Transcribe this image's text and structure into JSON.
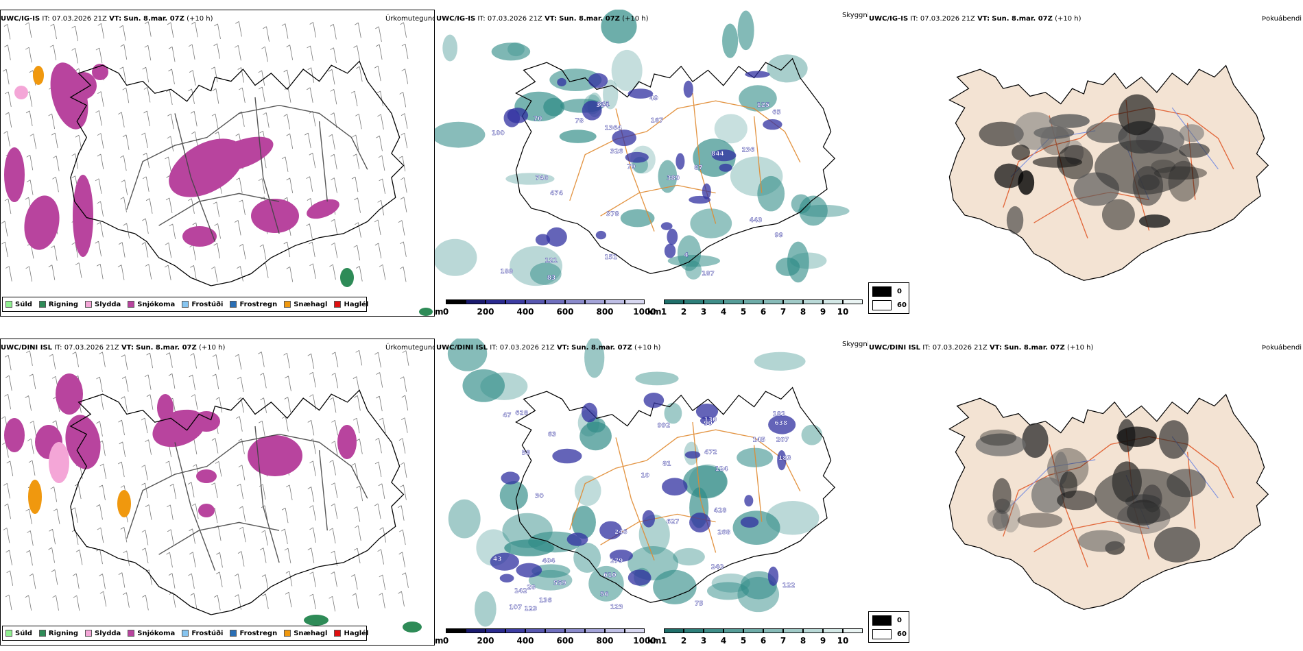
{
  "panels": {
    "top_left": {
      "model": "UWC/IG-IS",
      "it": "IT: 07.03.2026 21Z",
      "vt_label": "VT:",
      "vt_value": "Sun. 8.mar. 07Z",
      "lead": "(+10 h)",
      "field": "Úrkomutegund"
    },
    "top_mid": {
      "model": "UWC/IG-IS",
      "it": "IT: 07.03.2026 21Z",
      "vt_label": "VT:",
      "vt_value": "Sun. 8.mar. 07Z",
      "lead": "(+10 h)",
      "field": "Skyggni"
    },
    "top_right": {
      "model": "UWC/IG-IS",
      "it": "IT: 07.03.2026 21Z",
      "vt_label": "VT:",
      "vt_value": "Sun. 8.mar. 07Z",
      "lead": "(+10 h)",
      "field": "Þokuábendi"
    },
    "bot_left": {
      "model": "UWC/DINI ISL",
      "it": "IT: 07.03.2026 21Z",
      "vt_label": "VT:",
      "vt_value": "Sun. 8.mar. 07Z",
      "lead": "(+10 h)",
      "field": "Úrkomutegund"
    },
    "bot_mid": {
      "model": "UWC/DINI ISL",
      "it": "IT: 07.03.2026 21Z",
      "vt_label": "VT:",
      "vt_value": "Sun. 8.mar. 07Z",
      "lead": "(+10 h)",
      "field": "Skyggni"
    },
    "bot_right": {
      "model": "UWC/DINI ISL",
      "it": "IT: 07.03.2026 21Z",
      "vt_label": "VT:",
      "vt_value": "Sun. 8.mar. 07Z",
      "lead": "(+10 h)",
      "field": "Þokuábendi"
    }
  },
  "precip_legend": [
    {
      "label": "Súld",
      "color": "#90ee90"
    },
    {
      "label": "Rigning",
      "color": "#2e8b57"
    },
    {
      "label": "Slydda",
      "color": "#f4a6d7"
    },
    {
      "label": "Snjókoma",
      "color": "#b8449e"
    },
    {
      "label": "Frostúði",
      "color": "#87c5f0"
    },
    {
      "label": "Frostregn",
      "color": "#2b6fb5"
    },
    {
      "label": "Snæhagl",
      "color": "#f0980e"
    },
    {
      "label": "Haglél",
      "color": "#e01010"
    }
  ],
  "vis_m_scale": {
    "unit": "m",
    "ticks": [
      "0",
      "200",
      "400",
      "600",
      "800",
      "1000"
    ],
    "colors": [
      "#000000",
      "#1a1a6e",
      "#2a2a8f",
      "#3d3da3",
      "#5757b0",
      "#6f6fbe",
      "#8a8acb",
      "#a3a3d8",
      "#bebee5",
      "#d7d7f0"
    ]
  },
  "vis_km_scale": {
    "unit": "km",
    "ticks": [
      "1",
      "2",
      "3",
      "4",
      "5",
      "6",
      "7",
      "8",
      "9",
      "10"
    ],
    "colors": [
      "#1f6f6a",
      "#2d7f7a",
      "#3f8e89",
      "#569d98",
      "#6eaca8",
      "#87bbb8",
      "#a0cac7",
      "#b9d9d7",
      "#d3e8e6",
      "#eaf4f3"
    ]
  },
  "cloud_legend": [
    {
      "label": "0",
      "color": "#000000"
    },
    {
      "label": "60",
      "color": "#ffffff"
    }
  ],
  "colors": {
    "land": "#f3e3d3",
    "roads": "#e05a2a",
    "rivers": "#7a8fe0",
    "snow": "#b8449e",
    "vis_low": "#3030a0",
    "vis_km": "#2d8a85"
  },
  "vis_labels_top": [
    "236",
    "844",
    "167",
    "841",
    "326",
    "151",
    "4",
    "99",
    "125",
    "189",
    "187",
    "1364",
    "443",
    "100",
    "474",
    "79",
    "83",
    "87",
    "740",
    "389",
    "70",
    "78",
    "49",
    "65",
    "121",
    "324",
    "378"
  ],
  "vis_labels_bot": [
    "559",
    "179",
    "638",
    "47",
    "246",
    "123",
    "268",
    "628",
    "183",
    "75",
    "124",
    "207",
    "30",
    "240",
    "130",
    "10",
    "610",
    "81",
    "107",
    "43",
    "145",
    "404",
    "122",
    "182",
    "136",
    "627",
    "58",
    "56",
    "63",
    "90",
    "123",
    "28",
    "142",
    "428",
    "472",
    "992"
  ]
}
